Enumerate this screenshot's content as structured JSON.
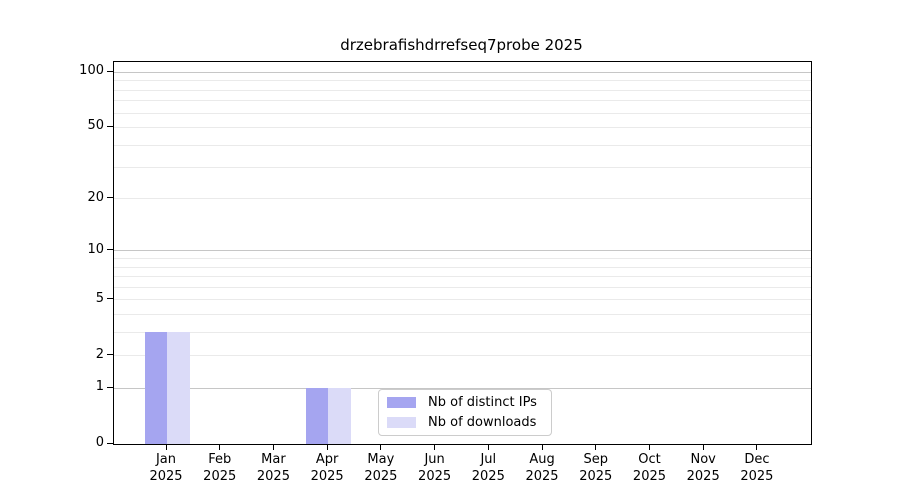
{
  "title": "drzebrafishdrrefseq7probe 2025",
  "chart_data": {
    "type": "bar",
    "title": "drzebrafishdrrefseq7probe 2025",
    "yscale": "log1p",
    "ylim": [
      0,
      114
    ],
    "grid": true,
    "x_months": [
      "Jan",
      "Feb",
      "Mar",
      "Apr",
      "May",
      "Jun",
      "Jul",
      "Aug",
      "Sep",
      "Oct",
      "Nov",
      "Dec"
    ],
    "x_year": "2025",
    "series": [
      {
        "name": "Nb of distinct IPs",
        "color": "#a5a5f0",
        "values": [
          3,
          0,
          0,
          1,
          0,
          0,
          0,
          0,
          0,
          0,
          0,
          0
        ]
      },
      {
        "name": "Nb of downloads",
        "color": "#dbdbf8",
        "values": [
          3,
          0,
          0,
          1,
          0,
          0,
          0,
          0,
          0,
          0,
          0,
          0
        ]
      }
    ],
    "yticks": [
      {
        "value": 0,
        "label": "0"
      },
      {
        "value": 1,
        "label": "1"
      },
      {
        "value": 2,
        "label": "2"
      },
      {
        "value": 5,
        "label": "5"
      },
      {
        "value": 10,
        "label": "10"
      },
      {
        "value": 20,
        "label": "20"
      },
      {
        "value": 50,
        "label": "50"
      },
      {
        "value": 100,
        "label": "100"
      }
    ],
    "major_gridlines": [
      1,
      10,
      100
    ],
    "minor_gridlines": [
      2,
      3,
      4,
      5,
      6,
      7,
      8,
      9,
      20,
      30,
      40,
      50,
      60,
      70,
      80,
      90
    ],
    "legend_position": "lower center"
  },
  "legend": {
    "items": [
      {
        "label": "Nb of distinct IPs",
        "color": "#a5a5f0"
      },
      {
        "label": "Nb of downloads",
        "color": "#dbdbf8"
      }
    ]
  },
  "colors": {
    "bar_distinct_ips": "#a5a5f0",
    "bar_downloads": "#dbdbf8",
    "grid_major": "#c6c6c6",
    "grid_minor": "#eaeaea",
    "spine": "#000000",
    "text": "#000000",
    "legend_border": "#cccccc",
    "background": "#ffffff"
  }
}
